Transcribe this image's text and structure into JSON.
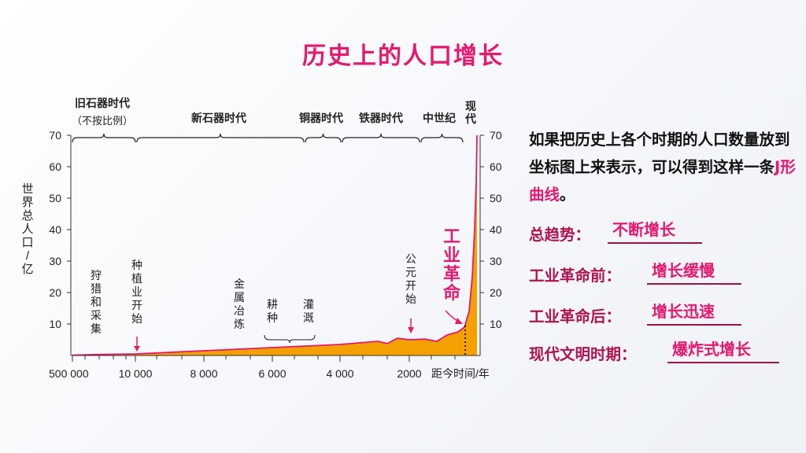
{
  "slide": {
    "title": "历史上的人口增长",
    "description_pre": "如果把历史上各个时期的人口数量放到坐标图上来表示，可以得到这样一条",
    "description_highlight": "J形曲线",
    "description_post": "。",
    "qa": [
      {
        "label": "总趋势：",
        "answer": "不断增长"
      },
      {
        "label": "工业革命前：",
        "answer": "增长缓慢"
      },
      {
        "label": "工业革命后：",
        "answer": "增长迅速"
      },
      {
        "label": "现代文明时期：",
        "answer": "爆炸式增长"
      }
    ]
  },
  "colors": {
    "title": "#e6186e",
    "fill": "#f4a100",
    "curve": "#e6186e",
    "label": "#b0124f"
  },
  "chart_data": {
    "type": "area",
    "ylabel": "世界总人口/亿",
    "xlabel": "距今时间/年",
    "ylim": [
      0,
      70
    ],
    "yticks": [
      10,
      20,
      30,
      40,
      50,
      60,
      70
    ],
    "xtick_labels": [
      "500 000",
      "10 000",
      "8 000",
      "6 000",
      "4 000",
      "2000"
    ],
    "x_scale": "non-linear (不按比例)",
    "eras": [
      {
        "name": "旧石器时代",
        "note": "（不按比例）"
      },
      {
        "name": "新石器时代"
      },
      {
        "name": "铜器时代"
      },
      {
        "name": "铁器时代"
      },
      {
        "name": "中世纪"
      },
      {
        "name": "现代"
      }
    ],
    "series": [
      {
        "x": [
          "500 000",
          "10 000",
          "8 000",
          "6 000",
          "4 000",
          "2000",
          "现代"
        ],
        "values": [
          0.1,
          0.5,
          1.5,
          2.5,
          3.5,
          5,
          70
        ]
      }
    ],
    "annotations": [
      {
        "text": "狩猎和采集"
      },
      {
        "text": "种植业开始"
      },
      {
        "text": "金属冶炼"
      },
      {
        "text": "耕种"
      },
      {
        "text": "灌溉"
      },
      {
        "text": "公元开始"
      },
      {
        "text": "工业革命"
      }
    ]
  }
}
